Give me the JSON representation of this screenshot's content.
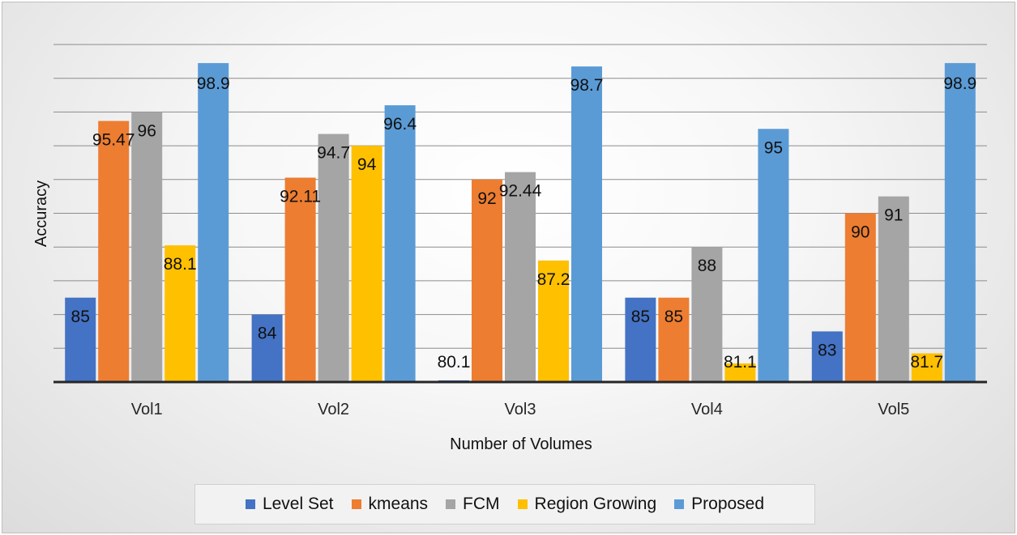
{
  "chart_data": {
    "type": "bar",
    "xlabel": "Number of Volumes",
    "ylabel": "Accuracy",
    "ylim": [
      80,
      100
    ],
    "grid": true,
    "legend_position": "bottom",
    "categories": [
      "Vol1",
      "Vol2",
      "Vol3",
      "Vol4",
      "Vol5"
    ],
    "series": [
      {
        "name": "Level Set",
        "color": "#4472C4",
        "values": [
          85,
          84,
          80.1,
          85,
          83
        ],
        "labels": [
          "85",
          "84",
          "80.1",
          "85",
          "83"
        ]
      },
      {
        "name": "kmeans",
        "color": "#ED7D31",
        "values": [
          95.47,
          92.11,
          92,
          85,
          90
        ],
        "labels": [
          "95.47",
          "92.11",
          "92",
          "85",
          "90"
        ]
      },
      {
        "name": "FCM",
        "color": "#A5A5A5",
        "values": [
          96,
          94.7,
          92.44,
          88,
          91
        ],
        "labels": [
          "96",
          "94.7",
          "92.44",
          "88",
          "91"
        ]
      },
      {
        "name": "Region Growing",
        "color": "#FFC000",
        "values": [
          88.1,
          94,
          87.2,
          81.1,
          81.7
        ],
        "labels": [
          "88.1",
          "94",
          "87.2",
          "81.1",
          "81.7"
        ]
      },
      {
        "name": "Proposed",
        "color": "#5B9BD5",
        "values": [
          98.9,
          96.4,
          98.7,
          95,
          98.9
        ],
        "labels": [
          "98.9",
          "96.4",
          "98.7",
          "95",
          "98.9"
        ]
      }
    ]
  }
}
